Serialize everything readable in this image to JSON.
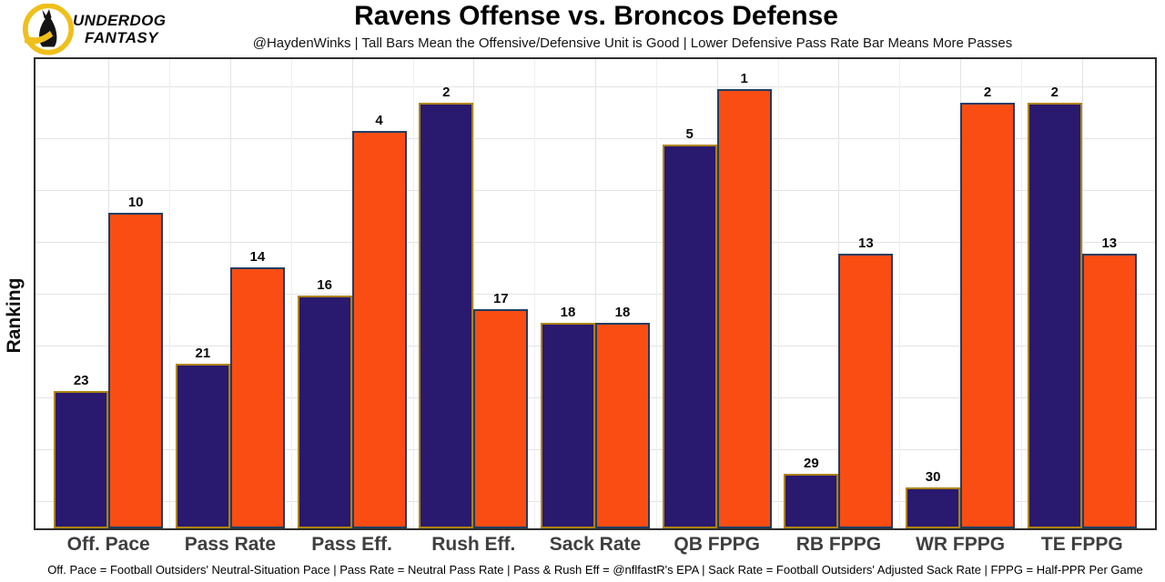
{
  "brand": {
    "name_line1": "UNDERDOG",
    "name_line2": "FANTASY",
    "logo_icon": "underdog-dog-in-gold-ring",
    "logo_ring_color": "#EFBF1B",
    "logo_dog_color": "#141414"
  },
  "header": {
    "title": "Ravens Offense vs. Broncos Defense",
    "subtitle": "@HaydenWinks | Tall Bars Mean the Offensive/Defensive Unit is Good | Lower Defensive Pass Rate Bar Means More Passes"
  },
  "footer": {
    "glossary": "Off. Pace = Football Outsiders' Neutral-Situation Pace | Pass Rate = Neutral Pass Rate | Pass & Rush Eff = @nflfastR's EPA | Sack Rate = Football Outsiders' Adjusted Sack Rate | FPPG = Half-PPR Per Game"
  },
  "chart_data": {
    "type": "bar",
    "title": "Ravens Offense vs. Broncos Defense",
    "ylabel": "Ranking",
    "xlabel": "",
    "categories": [
      "Off. Pace",
      "Pass Rate",
      "Pass Eff.",
      "Rush Eff.",
      "Sack Rate",
      "QB FPPG",
      "RB FPPG",
      "WR FPPG",
      "TE FPPG"
    ],
    "series": [
      {
        "name": "Ravens Offense",
        "color": "#29196F",
        "border_color": "#AD830F",
        "values": [
          23,
          21,
          16,
          2,
          18,
          5,
          29,
          30,
          2
        ]
      },
      {
        "name": "Broncos Defense",
        "color": "#FA4D14",
        "border_color": "#1F3E63",
        "values": [
          10,
          14,
          4,
          17,
          18,
          1,
          13,
          2,
          13
        ]
      }
    ],
    "value_labels": "ranking number printed above each bar",
    "value_encoding": "bars show NFL ranking; height = 33 - rank, so rank 1 is tallest",
    "ylim": [
      0,
      34.2
    ],
    "grid": true,
    "legend_position": "none"
  }
}
